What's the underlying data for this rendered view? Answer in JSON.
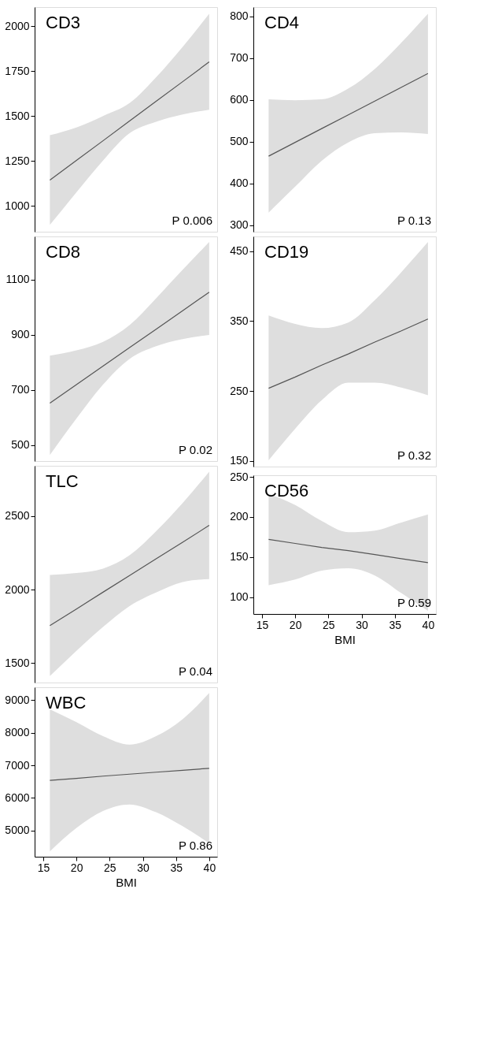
{
  "chart_data": [
    {
      "type": "line",
      "title": "CD3",
      "x": [
        16,
        20,
        24,
        28,
        32,
        36,
        40
      ],
      "xlim": [
        13.7,
        41.2
      ],
      "xticks": [
        15,
        20,
        25,
        30,
        35,
        40
      ],
      "ylim": [
        856,
        2106
      ],
      "yticks": [
        1000,
        1250,
        1500,
        1750,
        2000
      ],
      "tick_labels": "y",
      "annotations": [
        "P 0.006"
      ],
      "series": [
        {
          "color": "#555555",
          "values": [
            1143,
            1253,
            1362,
            1472,
            1582,
            1691,
            1801
          ],
          "lower": [
            894,
            1075,
            1252,
            1404,
            1468,
            1508,
            1535
          ],
          "upper": [
            1393,
            1436,
            1500,
            1572,
            1716,
            1885,
            2069
          ]
        }
      ]
    },
    {
      "type": "line",
      "title": "CD4",
      "x": [
        16,
        20,
        24,
        28,
        32,
        36,
        40
      ],
      "xlim": [
        13.7,
        41.2
      ],
      "xticks": [
        15,
        20,
        25,
        30,
        35,
        40
      ],
      "ylim": [
        284,
        822
      ],
      "yticks": [
        300,
        400,
        500,
        600,
        700,
        800
      ],
      "tick_labels": "y",
      "annotations": [
        "P 0.13"
      ],
      "series": [
        {
          "color": "#555555",
          "values": [
            465,
            498,
            531,
            564,
            597,
            630,
            663
          ],
          "lower": [
            330,
            392,
            454,
            498,
            520,
            522,
            518
          ],
          "upper": [
            601,
            599,
            601,
            627,
            674,
            737,
            806
          ]
        }
      ]
    },
    {
      "type": "line",
      "title": "CD8",
      "x": [
        16,
        20,
        24,
        28,
        32,
        36,
        40
      ],
      "xlim": [
        13.7,
        41.2
      ],
      "xticks": [
        15,
        20,
        25,
        30,
        35,
        40
      ],
      "ylim": [
        442,
        1256
      ],
      "yticks": [
        500,
        700,
        900,
        1100
      ],
      "tick_labels": "y",
      "annotations": [
        "P 0.02"
      ],
      "series": [
        {
          "color": "#555555",
          "values": [
            652,
            719,
            786,
            853,
            920,
            987,
            1054
          ],
          "lower": [
            464,
            596,
            719,
            812,
            858,
            884,
            899
          ],
          "upper": [
            824,
            843,
            874,
            935,
            1032,
            1135,
            1236
          ]
        }
      ]
    },
    {
      "type": "line",
      "title": "CD19",
      "x": [
        16,
        20,
        24,
        28,
        32,
        36,
        40
      ],
      "xlim": [
        13.7,
        41.2
      ],
      "xticks": [
        15,
        20,
        25,
        30,
        35,
        40
      ],
      "ylim": [
        142,
        471
      ],
      "yticks": [
        150,
        250,
        350,
        450
      ],
      "tick_labels": "y",
      "annotations": [
        "P 0.32"
      ],
      "series": [
        {
          "color": "#555555",
          "values": [
            254,
            270,
            287,
            303,
            320,
            336,
            353
          ],
          "lower": [
            151,
            196,
            237,
            262,
            262,
            255,
            244
          ],
          "upper": [
            358,
            346,
            340,
            348,
            380,
            420,
            463
          ]
        }
      ]
    },
    {
      "type": "line",
      "title": "TLC",
      "x": [
        16,
        20,
        24,
        28,
        32,
        36,
        40
      ],
      "xlim": [
        13.7,
        41.2
      ],
      "xticks": [
        15,
        20,
        25,
        30,
        35,
        40
      ],
      "ylim": [
        1368,
        2841
      ],
      "yticks": [
        1500,
        2000,
        2500
      ],
      "tick_labels": "y",
      "annotations": [
        "P 0.04"
      ],
      "series": [
        {
          "color": "#555555",
          "values": [
            1755,
            1868,
            1982,
            2095,
            2209,
            2322,
            2436
          ],
          "lower": [
            1412,
            1584,
            1746,
            1888,
            1980,
            2051,
            2071
          ],
          "upper": [
            2099,
            2112,
            2142,
            2233,
            2396,
            2588,
            2801
          ]
        }
      ]
    },
    {
      "type": "line",
      "title": "CD56",
      "x": [
        16,
        20,
        24,
        28,
        32,
        36,
        40
      ],
      "xlim": [
        13.7,
        41.2
      ],
      "xticks": [
        15,
        20,
        25,
        30,
        35,
        40
      ],
      "ylim": [
        79,
        252
      ],
      "yticks": [
        100,
        150,
        200,
        250
      ],
      "xlabel": "BMI",
      "annotations": [
        "P 0.59"
      ],
      "series": [
        {
          "color": "#555555",
          "values": [
            172,
            167,
            162,
            158,
            153,
            148,
            143
          ],
          "lower": [
            115,
            122,
            133,
            136,
            127,
            105,
            83
          ],
          "upper": [
            229,
            215,
            195,
            181,
            183,
            193,
            203
          ]
        }
      ]
    },
    {
      "type": "line",
      "title": "WBC",
      "x": [
        16,
        20,
        24,
        28,
        32,
        36,
        40
      ],
      "xlim": [
        13.7,
        41.2
      ],
      "xticks": [
        15,
        20,
        25,
        30,
        35,
        40
      ],
      "ylim": [
        4195,
        9398
      ],
      "yticks": [
        5000,
        6000,
        7000,
        8000,
        9000
      ],
      "xlabel": "BMI",
      "annotations": [
        "P 0.86"
      ],
      "series": [
        {
          "color": "#555555",
          "values": [
            6540,
            6600,
            6670,
            6730,
            6790,
            6850,
            6910
          ],
          "lower": [
            4360,
            5080,
            5600,
            5800,
            5560,
            5130,
            4610
          ],
          "upper": [
            8720,
            8330,
            7900,
            7640,
            7900,
            8420,
            9220
          ]
        }
      ]
    }
  ]
}
